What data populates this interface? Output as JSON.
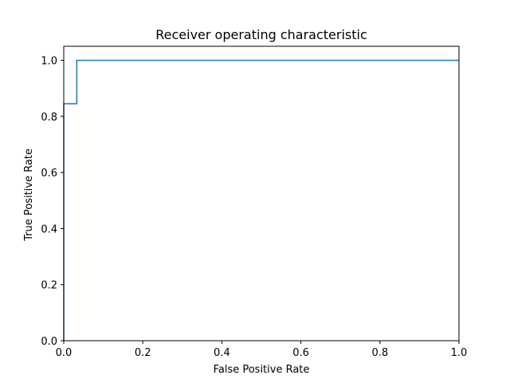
{
  "chart_data": {
    "type": "line",
    "title": "Receiver operating characteristic",
    "xlabel": "False Positive Rate",
    "ylabel": "True Positive Rate",
    "xlim": [
      0.0,
      1.0
    ],
    "ylim": [
      0.0,
      1.05
    ],
    "xticks": [
      "0.0",
      "0.2",
      "0.4",
      "0.6",
      "0.8",
      "1.0"
    ],
    "yticks": [
      "0.0",
      "0.2",
      "0.4",
      "0.6",
      "0.8",
      "1.0"
    ],
    "grid": false,
    "series": [
      {
        "color": "#1f77b4",
        "x": [
          0.0,
          0.0,
          0.033,
          0.033,
          1.0
        ],
        "y": [
          0.0,
          0.845,
          0.845,
          1.0,
          1.0
        ]
      }
    ]
  }
}
